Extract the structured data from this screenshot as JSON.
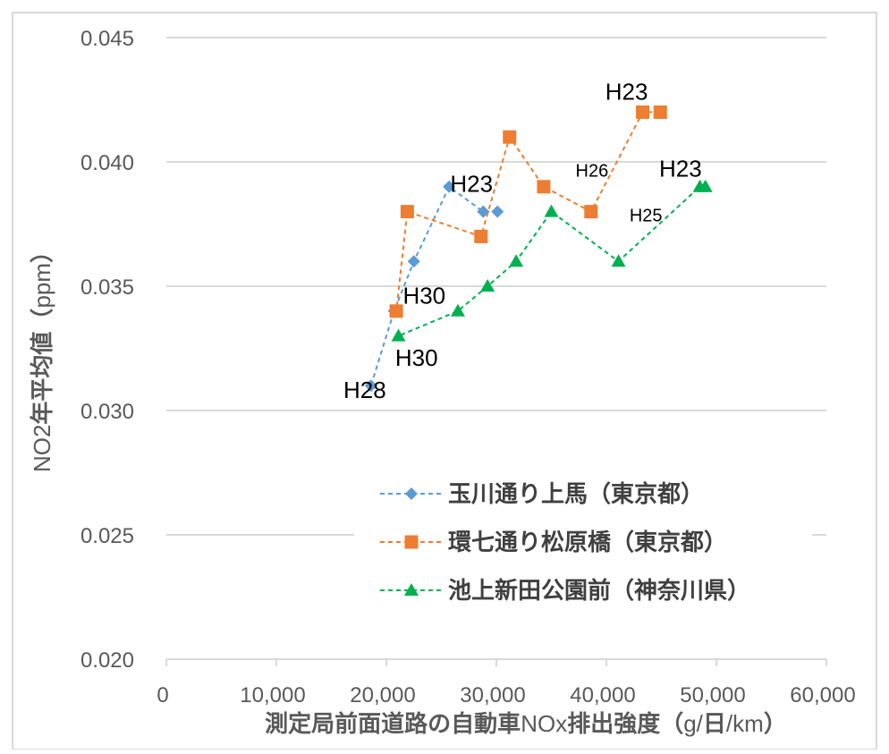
{
  "chart_data": {
    "type": "scatter",
    "title": "",
    "xlabel_parts": [
      {
        "text": "測定局前面道路の自動車",
        "bold": true
      },
      {
        "text": "NOx",
        "bold": false
      },
      {
        "text": "排出強度",
        "bold": true
      },
      {
        "text": "（",
        "bold": true
      },
      {
        "text": "g/",
        "bold": false
      },
      {
        "text": "日",
        "bold": true
      },
      {
        "text": "/km",
        "bold": false
      },
      {
        "text": "）",
        "bold": true
      }
    ],
    "ylabel_parts": [
      {
        "text": "NO2",
        "bold": false
      },
      {
        "text": "年平均値",
        "bold": true
      },
      {
        "text": "（",
        "bold": true
      },
      {
        "text": "ppm",
        "bold": false
      },
      {
        "text": "）",
        "bold": true
      }
    ],
    "xlim": [
      0,
      60000
    ],
    "ylim": [
      0.02,
      0.045
    ],
    "x_ticks": [
      0,
      10000,
      20000,
      30000,
      40000,
      50000,
      60000
    ],
    "x_tick_labels": [
      "0",
      "10,000",
      "20,000",
      "30,000",
      "40,000",
      "50,000",
      "60,000"
    ],
    "y_ticks": [
      0.02,
      0.025,
      0.03,
      0.035,
      0.04,
      0.045
    ],
    "y_tick_labels": [
      "0.020",
      "0.025",
      "0.030",
      "0.035",
      "0.040",
      "0.045"
    ],
    "grid": "horizontal",
    "legend_position": "lower-center",
    "series": [
      {
        "name": "玉川通り上馬（東京都）",
        "color": "#5B9BD5",
        "marker": "diamond",
        "line": "dashed",
        "points": [
          {
            "x": 30100,
            "y": 0.038
          },
          {
            "x": 28800,
            "y": 0.038
          },
          {
            "x": 25700,
            "y": 0.039
          },
          {
            "x": 22500,
            "y": 0.036
          },
          {
            "x": 20700,
            "y": 0.034
          },
          {
            "x": 18600,
            "y": 0.031
          }
        ]
      },
      {
        "name": "環七通り松原橋（東京都）",
        "color": "#ED7D31",
        "marker": "square",
        "line": "dashed",
        "points": [
          {
            "x": 44900,
            "y": 0.042
          },
          {
            "x": 43300,
            "y": 0.042
          },
          {
            "x": 38600,
            "y": 0.038
          },
          {
            "x": 34300,
            "y": 0.039
          },
          {
            "x": 31200,
            "y": 0.041
          },
          {
            "x": 28600,
            "y": 0.037
          },
          {
            "x": 21900,
            "y": 0.038
          },
          {
            "x": 20900,
            "y": 0.034
          }
        ]
      },
      {
        "name": "池上新田公園前（神奈川県）",
        "color": "#00B050",
        "marker": "triangle",
        "line": "dashed",
        "points": [
          {
            "x": 49000,
            "y": 0.039
          },
          {
            "x": 48500,
            "y": 0.039
          },
          {
            "x": 41100,
            "y": 0.036
          },
          {
            "x": 35000,
            "y": 0.038
          },
          {
            "x": 31800,
            "y": 0.036
          },
          {
            "x": 29200,
            "y": 0.035
          },
          {
            "x": 26500,
            "y": 0.034
          },
          {
            "x": 21100,
            "y": 0.033
          }
        ]
      }
    ],
    "annotations": [
      {
        "text": "H23",
        "x": 25800,
        "y": 0.0388,
        "size": "large"
      },
      {
        "text": "H28",
        "x": 16100,
        "y": 0.0305,
        "size": "large"
      },
      {
        "text": "H30",
        "x": 21500,
        "y": 0.0343,
        "size": "large"
      },
      {
        "text": "H30",
        "x": 20800,
        "y": 0.0318,
        "size": "large"
      },
      {
        "text": "H23",
        "x": 39900,
        "y": 0.0425,
        "size": "large"
      },
      {
        "text": "H26",
        "x": 37200,
        "y": 0.0394,
        "size": "small"
      },
      {
        "text": "H23",
        "x": 44800,
        "y": 0.0394,
        "size": "large"
      },
      {
        "text": "H25",
        "x": 42100,
        "y": 0.0376,
        "size": "small"
      }
    ]
  }
}
